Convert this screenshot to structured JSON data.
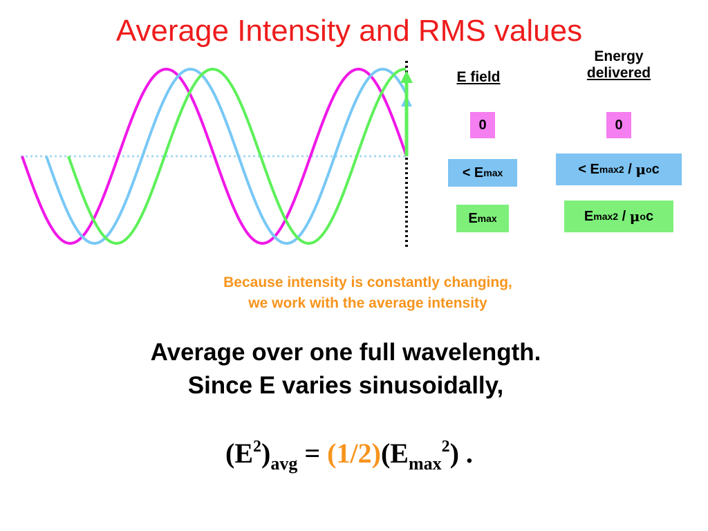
{
  "title": "Average Intensity and RMS values",
  "headers": {
    "e_field": "E field",
    "energy_line1": "Energy",
    "energy_line2": "delivered"
  },
  "rows": {
    "pink": {
      "e_field": "0",
      "energy": "0"
    },
    "blue": {
      "e_field_prefix": "< E",
      "e_field_sub": "max",
      "energy_prefix": "< E",
      "energy_sub": "max",
      "energy_sup": "2",
      "energy_slash": " / ",
      "energy_mu": "μ",
      "energy_o": "o",
      "energy_c": "c"
    },
    "green": {
      "e_field_prefix": "E",
      "e_field_sub": "max",
      "energy_prefix": "E",
      "energy_sub": "max",
      "energy_sup": "2",
      "energy_slash": " / ",
      "energy_mu": "μ",
      "energy_o": "o",
      "energy_c": "c"
    }
  },
  "note": {
    "line1": "Because intensity is constantly changing,",
    "line2": "we work with the average intensity"
  },
  "body": {
    "line1": "Average over one full wavelength.",
    "line2": "Since  E varies sinusoidally,"
  },
  "formula": {
    "open": "(E",
    "sup1": "2",
    "close": ")",
    "sub": "avg",
    "equals": " = ",
    "half": "(1/2)",
    "emax_open": "(E",
    "emax_sub": "max",
    "emax_sup": "2",
    "emax_close": ") ."
  },
  "colors": {
    "pink_wave": "#f018e8",
    "blue_wave": "#78c8f5",
    "green_wave": "#5ef05a",
    "title": "#ee1c1c",
    "note": "#f7941d"
  }
}
